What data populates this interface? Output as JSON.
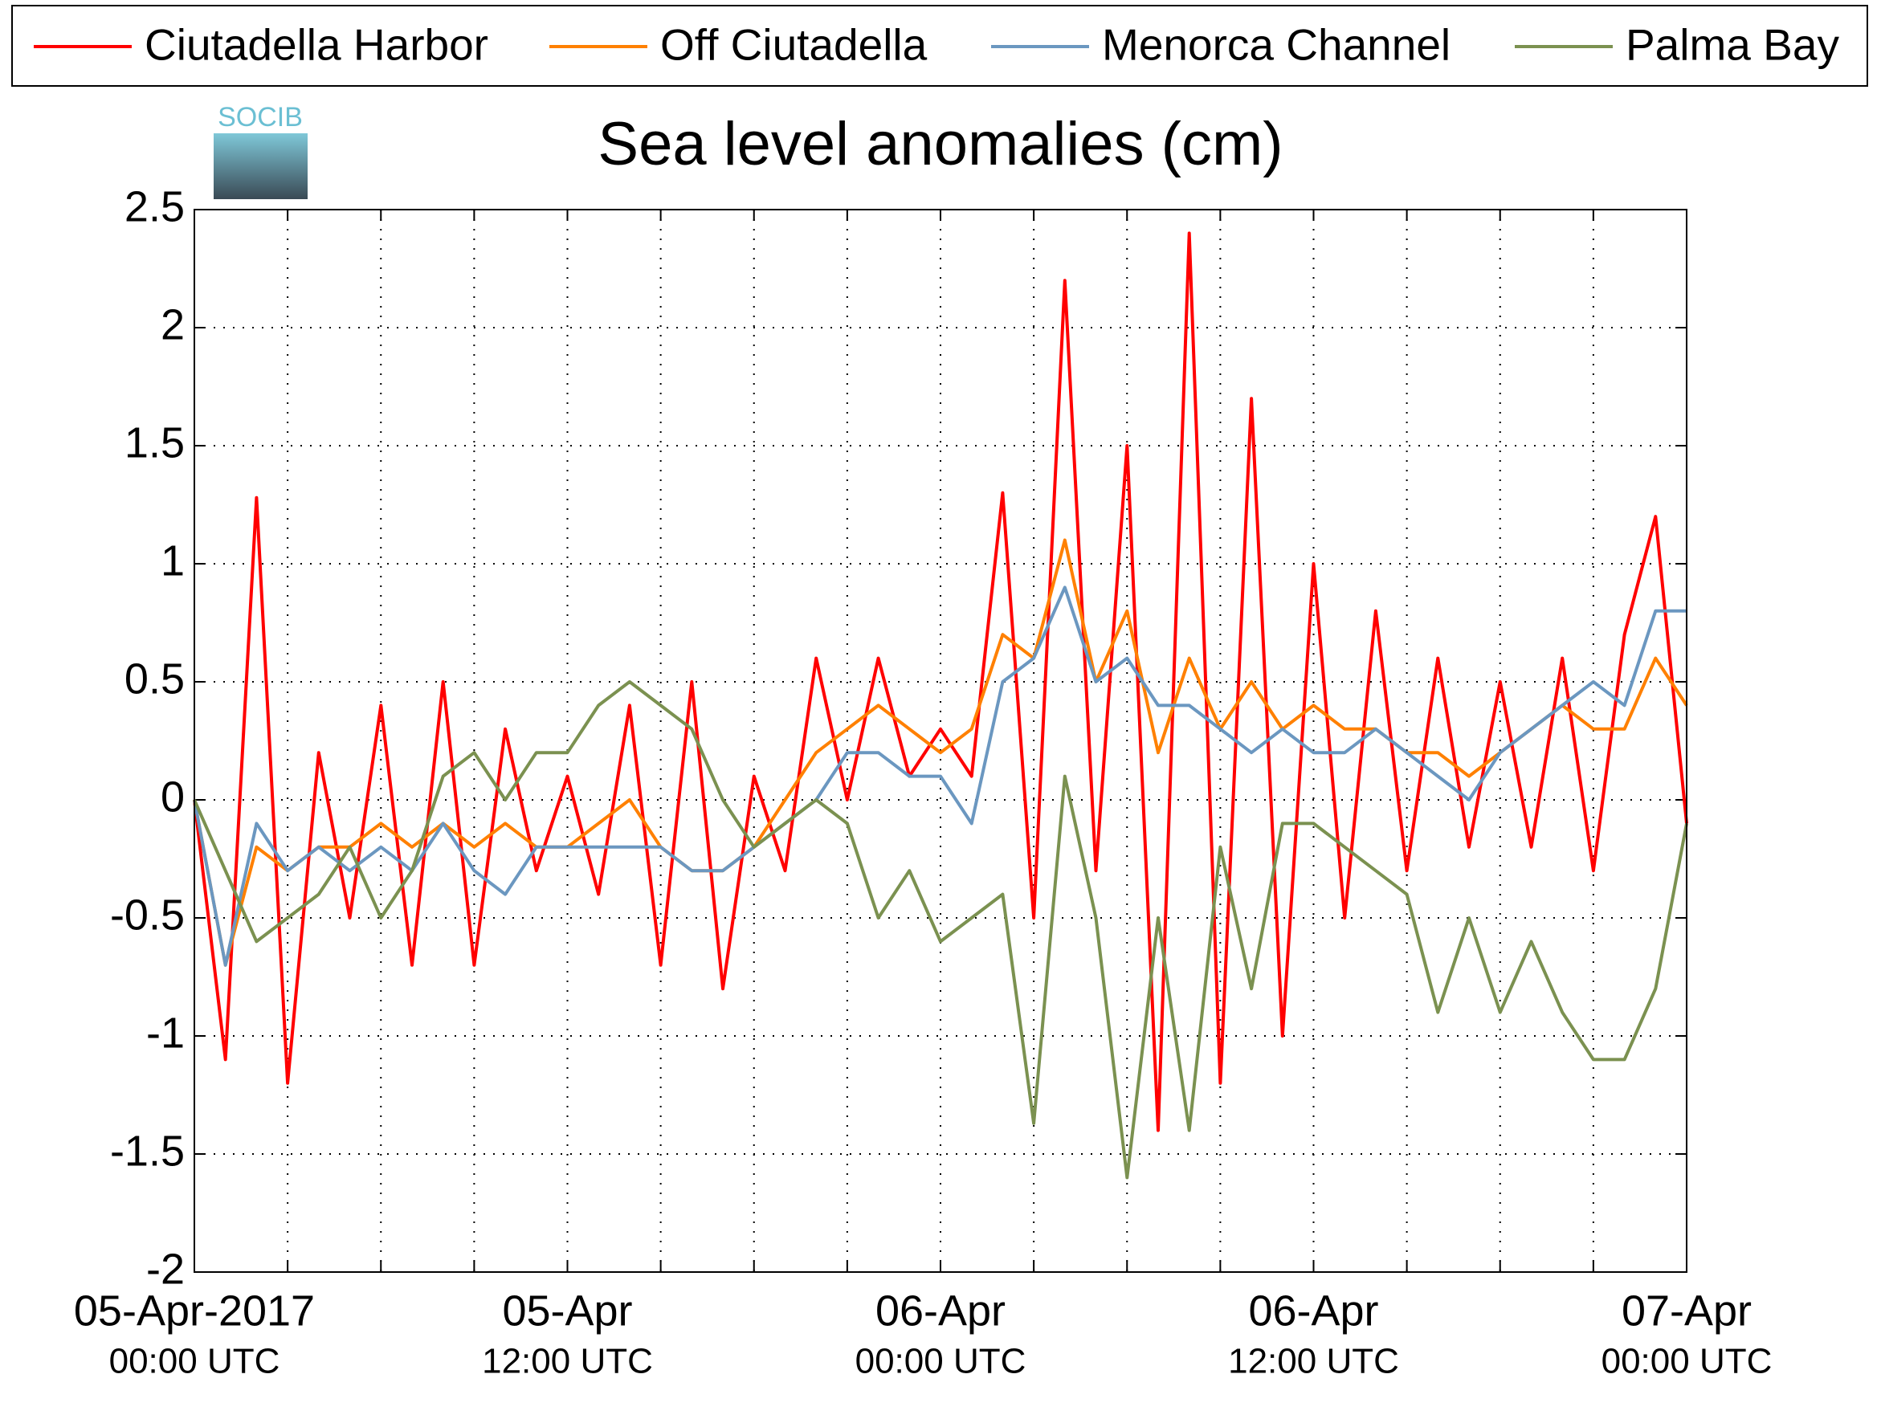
{
  "chart_data": {
    "type": "line",
    "title": "Sea level anomalies (cm)",
    "logo_text": "SOCIB",
    "x": [
      0,
      1,
      2,
      3,
      4,
      5,
      6,
      7,
      8,
      9,
      10,
      11,
      12,
      13,
      14,
      15,
      16,
      17,
      18,
      19,
      20,
      21,
      22,
      23,
      24,
      25,
      26,
      27,
      28,
      29,
      30,
      31,
      32,
      33,
      34,
      35,
      36,
      37,
      38,
      39,
      40,
      41,
      42,
      43,
      44,
      45,
      46,
      47,
      48
    ],
    "xlim": [
      0,
      48
    ],
    "xticks": [
      {
        "value": 0,
        "label": "05-Apr-2017",
        "sublabel": "00:00 UTC"
      },
      {
        "value": 12,
        "label": "05-Apr",
        "sublabel": "12:00 UTC"
      },
      {
        "value": 24,
        "label": "06-Apr",
        "sublabel": "00:00 UTC"
      },
      {
        "value": 36,
        "label": "06-Apr",
        "sublabel": "12:00 UTC"
      },
      {
        "value": 48,
        "label": "07-Apr",
        "sublabel": "00:00 UTC"
      }
    ],
    "xminor_ticks": [
      3,
      6,
      9,
      15,
      18,
      21,
      27,
      30,
      33,
      39,
      42,
      45
    ],
    "ylim": [
      -2,
      2.5
    ],
    "yticks": [
      -2,
      -1.5,
      -1,
      -0.5,
      0,
      0.5,
      1,
      1.5,
      2,
      2.5
    ],
    "grid": true,
    "legend": "top",
    "series": [
      {
        "name": "Ciutadella Harbor",
        "color": "#ff0000",
        "values": [
          0,
          -1.1,
          1.28,
          -1.2,
          0.2,
          -0.5,
          0.4,
          -0.7,
          0.5,
          -0.7,
          0.3,
          -0.3,
          0.1,
          -0.4,
          0.4,
          -0.7,
          0.5,
          -0.8,
          0.1,
          -0.3,
          0.6,
          0,
          0.6,
          0.1,
          0.3,
          0.1,
          1.3,
          -0.5,
          2.2,
          -0.3,
          1.5,
          -1.4,
          2.4,
          -1.2,
          1.7,
          -1,
          1,
          -0.5,
          0.8,
          -0.3,
          0.6,
          -0.2,
          0.5,
          -0.2,
          0.6,
          -0.3,
          0.7,
          1.2,
          -0.1
        ]
      },
      {
        "name": "Off Ciutadella",
        "color": "#ff8000",
        "values": [
          0,
          -0.7,
          -0.2,
          -0.3,
          -0.2,
          -0.2,
          -0.1,
          -0.2,
          -0.1,
          -0.2,
          -0.1,
          -0.2,
          -0.2,
          -0.1,
          0,
          -0.2,
          -0.3,
          -0.3,
          -0.2,
          0,
          0.2,
          0.3,
          0.4,
          0.3,
          0.2,
          0.3,
          0.7,
          0.6,
          1.1,
          0.5,
          0.8,
          0.2,
          0.6,
          0.3,
          0.5,
          0.3,
          0.4,
          0.3,
          0.3,
          0.2,
          0.2,
          0.1,
          0.2,
          0.3,
          0.4,
          0.3,
          0.3,
          0.6,
          0.4
        ]
      },
      {
        "name": "Menorca Channel",
        "color": "#6b97c0",
        "values": [
          0,
          -0.7,
          -0.1,
          -0.3,
          -0.2,
          -0.3,
          -0.2,
          -0.3,
          -0.1,
          -0.3,
          -0.4,
          -0.2,
          -0.2,
          -0.2,
          -0.2,
          -0.2,
          -0.3,
          -0.3,
          -0.2,
          -0.1,
          0,
          0.2,
          0.2,
          0.1,
          0.1,
          -0.1,
          0.5,
          0.6,
          0.9,
          0.5,
          0.6,
          0.4,
          0.4,
          0.3,
          0.2,
          0.3,
          0.2,
          0.2,
          0.3,
          0.2,
          0.1,
          0,
          0.2,
          0.3,
          0.4,
          0.5,
          0.4,
          0.8,
          0.8
        ]
      },
      {
        "name": "Palma Bay",
        "color": "#7b9150",
        "values": [
          0,
          -0.3,
          -0.6,
          -0.5,
          -0.4,
          -0.2,
          -0.5,
          -0.3,
          0.1,
          0.2,
          0,
          0.2,
          0.2,
          0.4,
          0.5,
          0.4,
          0.3,
          0,
          -0.2,
          -0.1,
          0,
          -0.1,
          -0.5,
          -0.3,
          -0.6,
          -0.5,
          -0.4,
          -1.37,
          0.1,
          -0.5,
          -1.6,
          -0.5,
          -1.4,
          -0.2,
          -0.8,
          -0.1,
          -0.1,
          -0.2,
          -0.3,
          -0.4,
          -0.9,
          -0.5,
          -0.9,
          -0.6,
          -0.9,
          -1.1,
          -1.1,
          -0.8,
          -0.1
        ]
      }
    ]
  }
}
